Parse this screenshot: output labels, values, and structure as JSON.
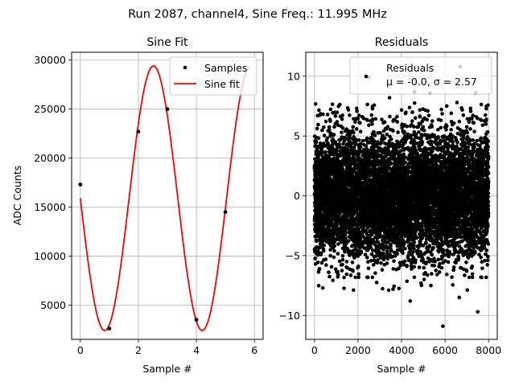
{
  "figure": {
    "suptitle": "Run 2087, channel4, Sine Freq.: 11.995 MHz"
  },
  "chart_data": [
    {
      "type": "line",
      "title": "Sine Fit",
      "xlabel": "Sample #",
      "ylabel": "ADC Counts",
      "xlim": [
        -0.3,
        6.3
      ],
      "ylim": [
        1500,
        30800
      ],
      "xticks": [
        0,
        2,
        4,
        6
      ],
      "yticks": [
        5000,
        10000,
        15000,
        20000,
        25000,
        30000
      ],
      "grid": true,
      "legend": {
        "position": "top-right",
        "entries": [
          "Samples",
          "Sine fit"
        ]
      },
      "series": [
        {
          "name": "Samples",
          "style": "scatter",
          "color": "#000000",
          "x": [
            0,
            1,
            2,
            3,
            4,
            5
          ],
          "y": [
            17300,
            2600,
            22700,
            25000,
            3500,
            14500
          ]
        },
        {
          "name": "Sine fit",
          "style": "line",
          "color": "#ff0000",
          "fit": {
            "offset": 15900,
            "amplitude": 13500,
            "period": 3.36,
            "phase_at": 0.84,
            "phase_value": "minimum"
          },
          "x_range": [
            0,
            5.8
          ]
        }
      ]
    },
    {
      "type": "scatter",
      "title": "Residuals",
      "xlabel": "Sample #",
      "ylabel": "",
      "xlim": [
        -400,
        8400
      ],
      "ylim": [
        -12,
        12
      ],
      "xticks": [
        0,
        2000,
        4000,
        6000,
        8000
      ],
      "yticks": [
        -10,
        -5,
        0,
        5,
        10
      ],
      "grid": true,
      "legend": {
        "position": "top-right",
        "entries": [
          "Residuals",
          "μ = -0.0, σ = 2.57"
        ]
      },
      "series": [
        {
          "name": "Residuals",
          "color": "#000000",
          "n_points": 8000,
          "mean": -0.0,
          "std": 2.57,
          "outliers": [
            {
              "x": 5900,
              "y": -10.9
            },
            {
              "x": 6700,
              "y": 10.8
            },
            {
              "x": 7500,
              "y": -9.7
            },
            {
              "x": 4400,
              "y": -8.8
            },
            {
              "x": 2500,
              "y": 9.9
            },
            {
              "x": 7400,
              "y": 8.6
            },
            {
              "x": 3450,
              "y": 8.2
            },
            {
              "x": 4600,
              "y": 8.7
            },
            {
              "x": 5300,
              "y": 8.6
            },
            {
              "x": 6650,
              "y": -8.5
            },
            {
              "x": 5350,
              "y": -7.5
            },
            {
              "x": 380,
              "y": -7.7
            }
          ]
        }
      ]
    }
  ]
}
